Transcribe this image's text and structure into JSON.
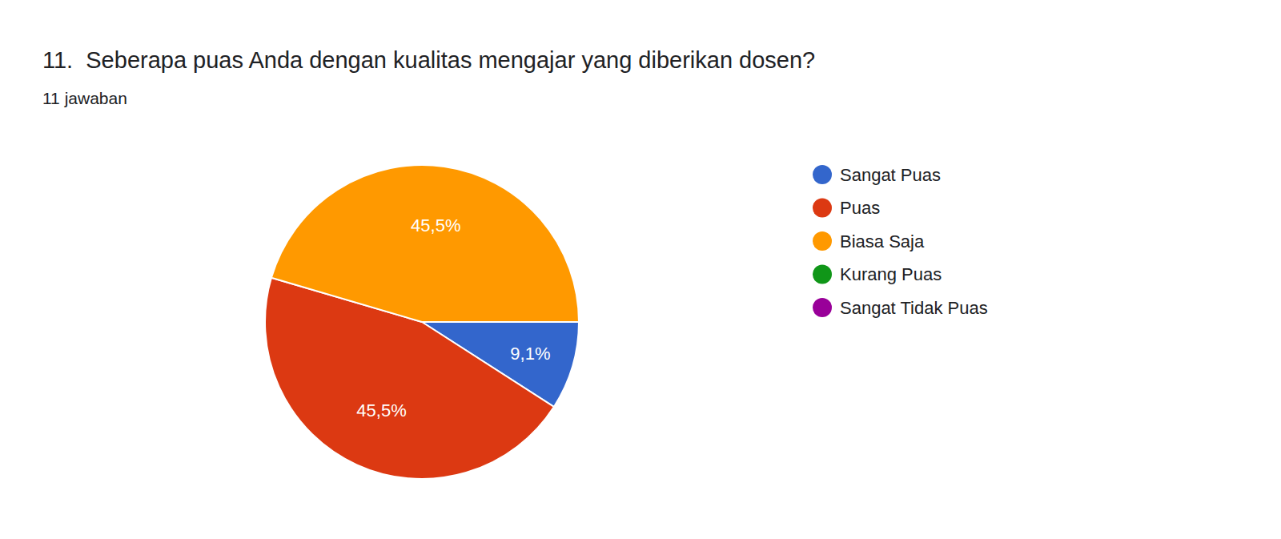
{
  "chart_data": {
    "type": "pie",
    "title": "11.  Seberapa puas Anda dengan kualitas mengajar yang diberikan dosen?",
    "subtitle": "11 jawaban",
    "categories": [
      "Sangat Puas",
      "Puas",
      "Biasa Saja",
      "Kurang Puas",
      "Sangat Tidak Puas"
    ],
    "values": [
      9.1,
      45.5,
      45.5,
      0,
      0
    ],
    "value_labels": [
      "9,1%",
      "45,5%",
      "45,5%",
      null,
      null
    ],
    "colors": [
      "#3366cc",
      "#dc3912",
      "#ff9900",
      "#109618",
      "#990099"
    ],
    "data_labels": true,
    "legend": "right"
  }
}
